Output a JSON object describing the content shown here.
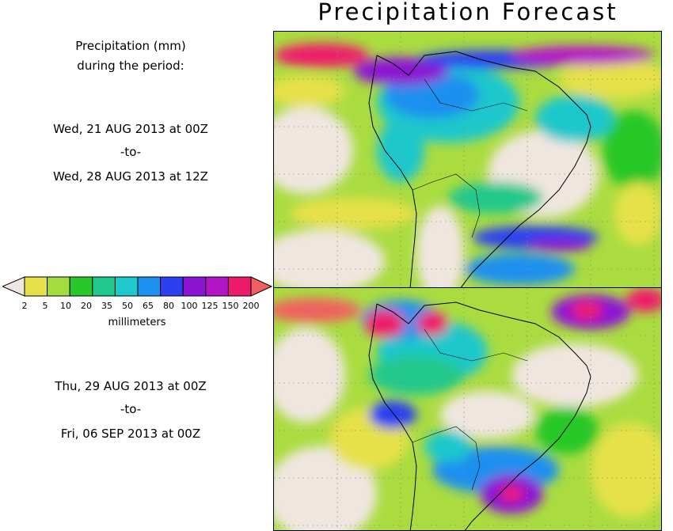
{
  "title": "Precipitation Forecast",
  "intro": {
    "line1": "Precipitation (mm)",
    "line2": "during the period:"
  },
  "period1": {
    "start": "Wed, 21 AUG 2013 at 00Z",
    "separator": "-to-",
    "end": "Wed, 28 AUG 2013 at 12Z"
  },
  "period2": {
    "start": "Thu, 29 AUG 2013 at 00Z",
    "separator": "-to-",
    "end": "Fri, 06 SEP 2013 at 00Z"
  },
  "legend": {
    "units": "millimeters",
    "ticks": [
      "2",
      "5",
      "10",
      "20",
      "35",
      "50",
      "65",
      "80",
      "100",
      "125",
      "150",
      "200"
    ],
    "colors": {
      "below": "#f0e6e0",
      "bins": [
        "#e6e14a",
        "#a4dc40",
        "#28c828",
        "#20c88c",
        "#1ec8cc",
        "#1e90f0",
        "#2c40f0",
        "#8c14d2",
        "#b414c8",
        "#ee1a6a"
      ],
      "above": "#f06060"
    }
  }
}
